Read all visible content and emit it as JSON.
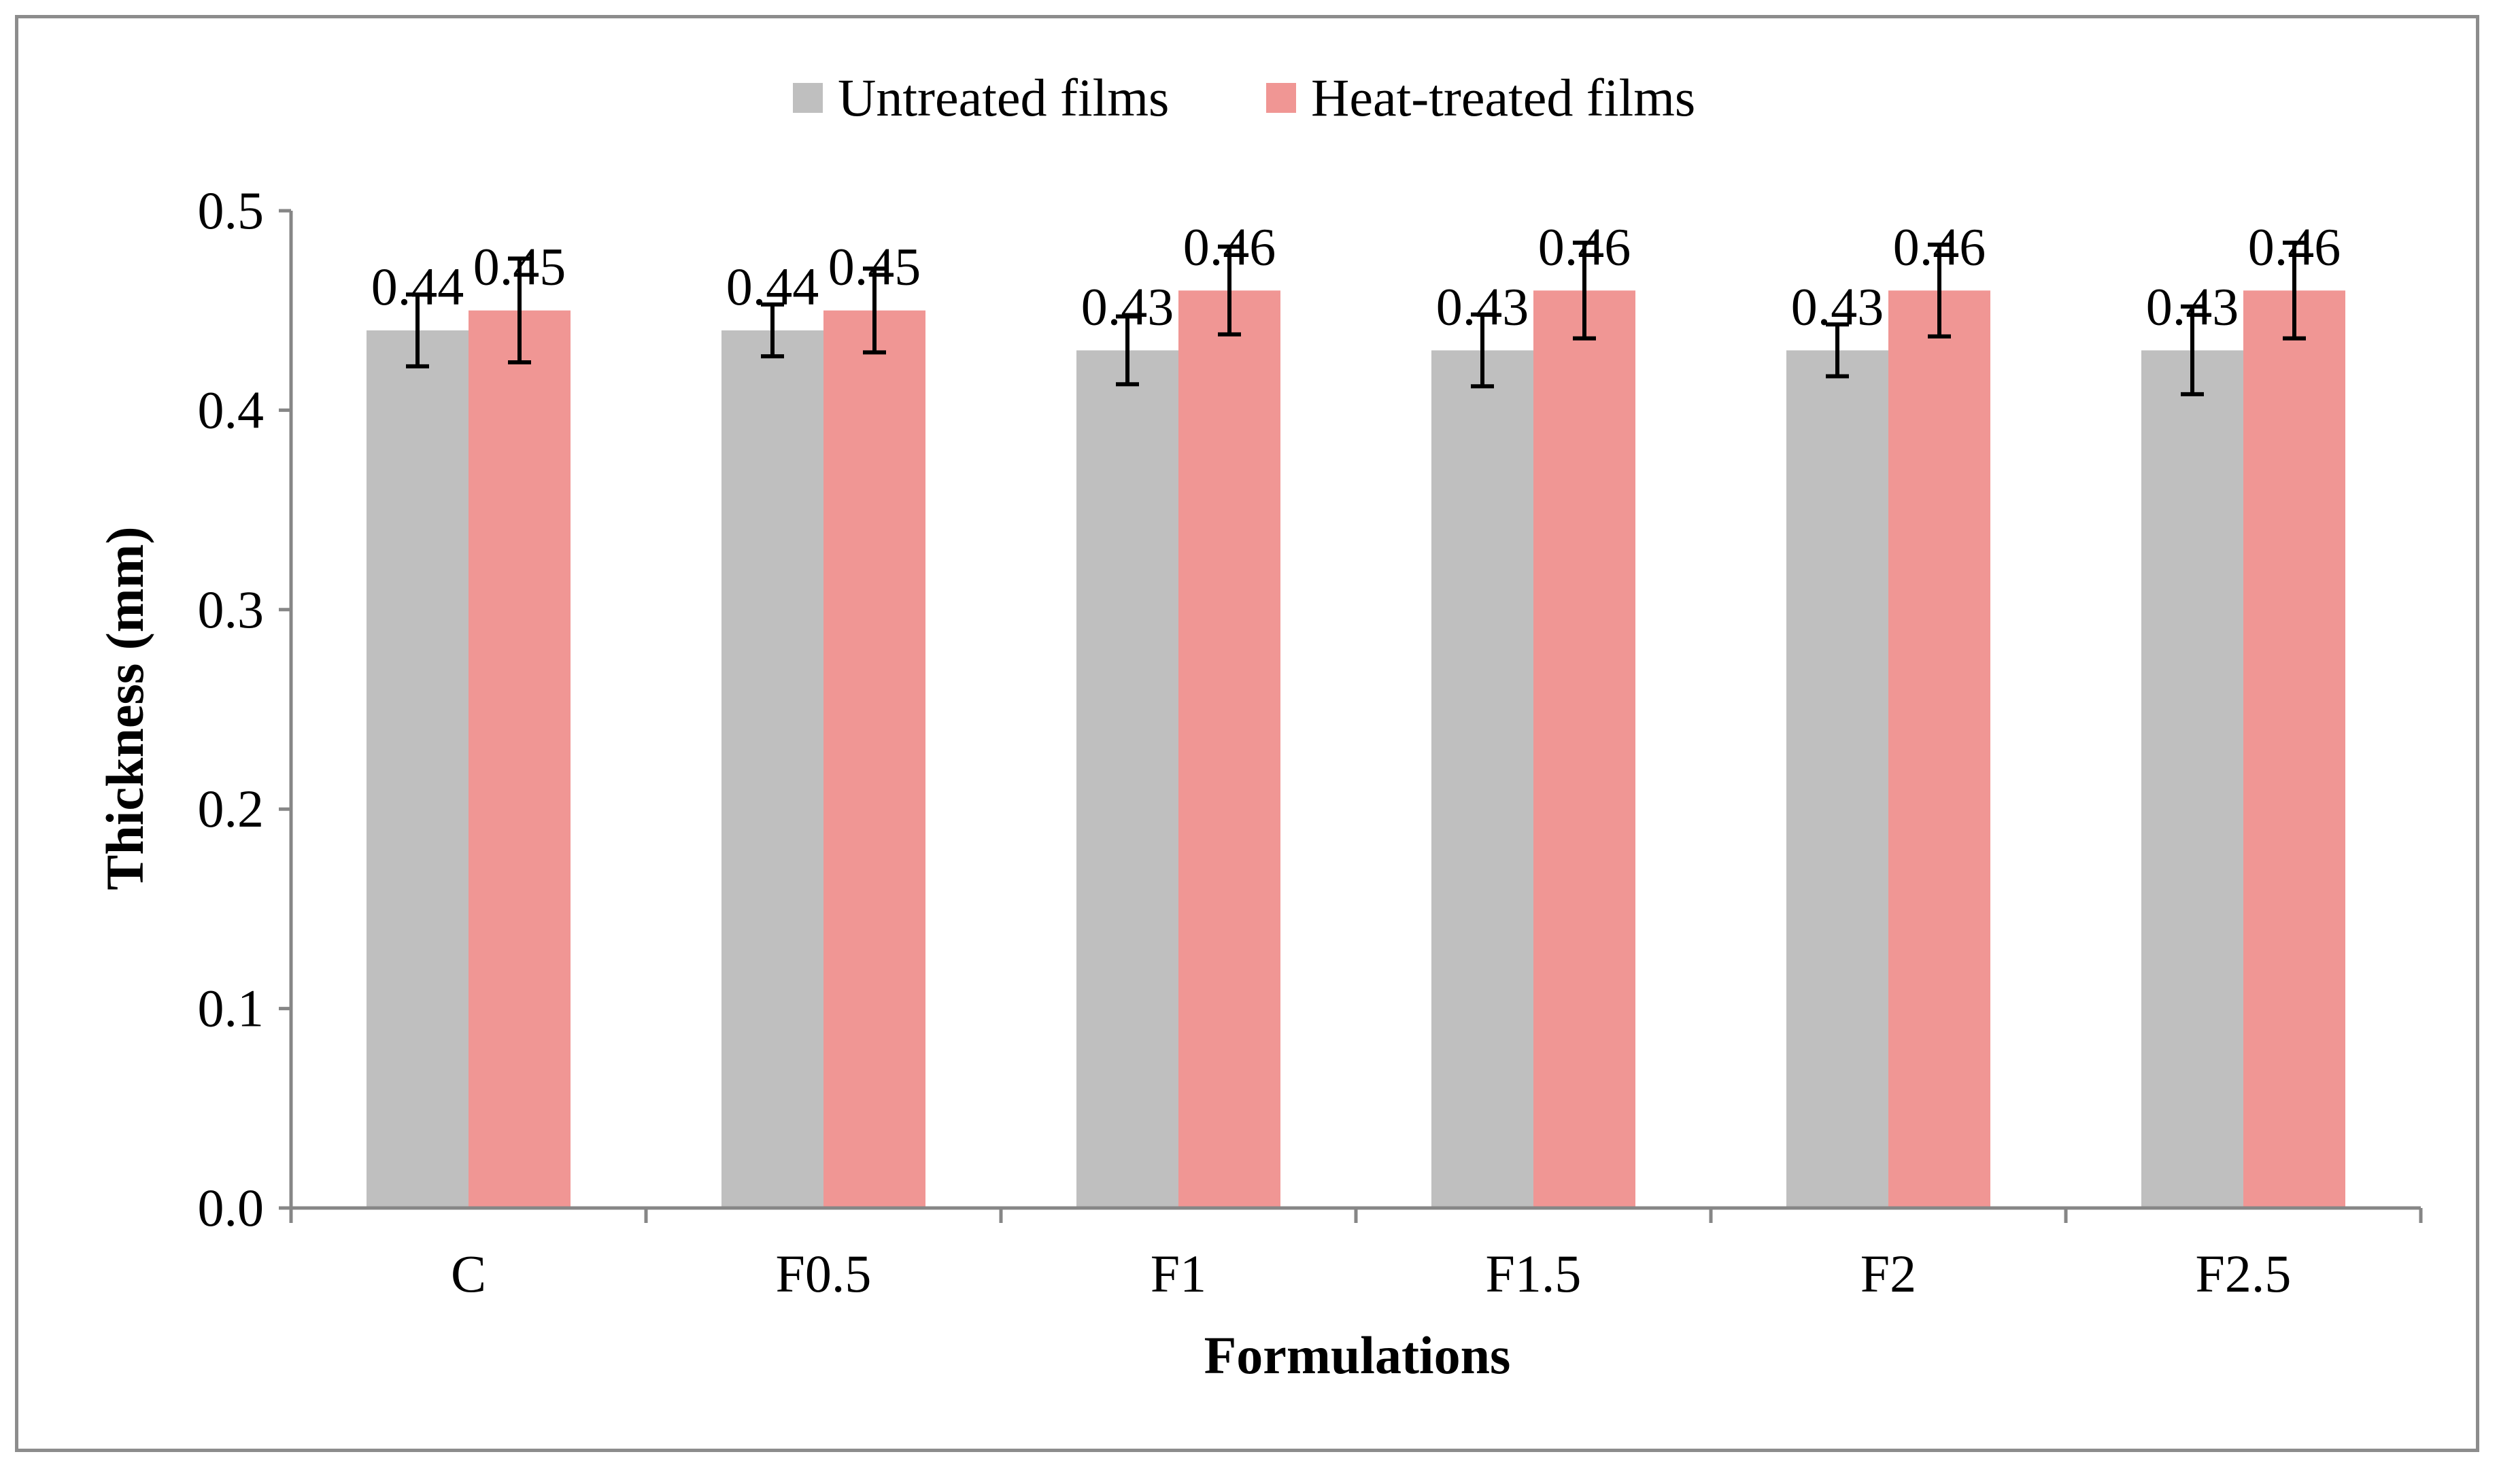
{
  "chart_data": {
    "type": "bar",
    "title": "",
    "xlabel": "Formulations",
    "ylabel": "Thickness (mm)",
    "ylim": [
      0,
      0.5
    ],
    "yticks": [
      "0.0",
      "0.1",
      "0.2",
      "0.3",
      "0.4",
      "0.5"
    ],
    "grid": false,
    "legend_position": "top-center",
    "categories": [
      "C",
      "F0.5",
      "F1",
      "F1.5",
      "F2",
      "F2.5"
    ],
    "series": [
      {
        "name": "Untreated films",
        "color": "#bfbfbf",
        "values": [
          0.44,
          0.44,
          0.43,
          0.43,
          0.43,
          0.43
        ],
        "labels": [
          "0.44",
          "0.44",
          "0.43",
          "0.43",
          "0.43",
          "0.43"
        ],
        "errors": [
          0.018,
          0.013,
          0.017,
          0.018,
          0.013,
          0.022
        ]
      },
      {
        "name": "Heat-treated films",
        "color": "#f09694",
        "values": [
          0.45,
          0.45,
          0.46,
          0.46,
          0.46,
          0.46
        ],
        "labels": [
          "0.45",
          "0.45",
          "0.46",
          "0.46",
          "0.46",
          "0.46"
        ],
        "errors": [
          0.026,
          0.021,
          0.022,
          0.024,
          0.023,
          0.024
        ]
      }
    ]
  }
}
